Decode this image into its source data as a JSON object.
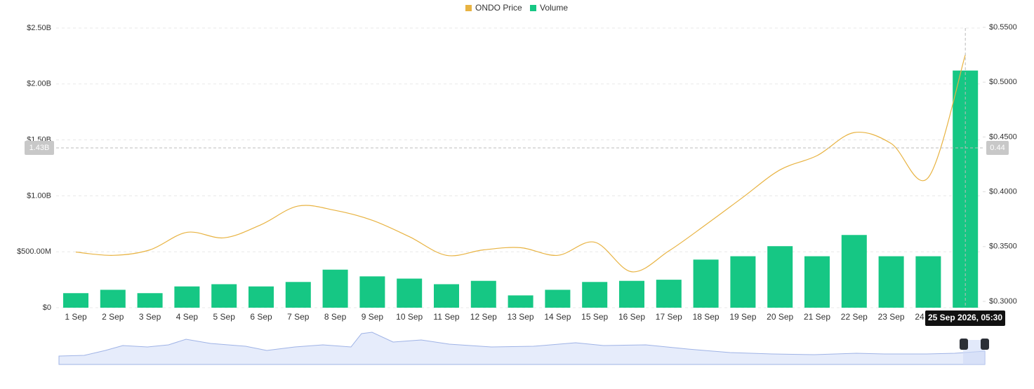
{
  "chart_data": {
    "type": "bar-line",
    "legend": [
      "ONDO Price",
      "Volume"
    ],
    "categories": [
      "1 Sep",
      "2 Sep",
      "3 Sep",
      "4 Sep",
      "5 Sep",
      "6 Sep",
      "7 Sep",
      "8 Sep",
      "9 Sep",
      "10 Sep",
      "11 Sep",
      "12 Sep",
      "13 Sep",
      "14 Sep",
      "15 Sep",
      "16 Sep",
      "17 Sep",
      "18 Sep",
      "19 Sep",
      "20 Sep",
      "21 Sep",
      "22 Sep",
      "23 Sep",
      "24 Sep",
      "25 Sep"
    ],
    "series": [
      {
        "name": "Volume",
        "type": "bar",
        "color": "#16c784",
        "values": [
          130000000,
          160000000,
          130000000,
          190000000,
          210000000,
          190000000,
          230000000,
          340000000,
          280000000,
          260000000,
          210000000,
          240000000,
          110000000,
          160000000,
          230000000,
          240000000,
          250000000,
          430000000,
          460000000,
          550000000,
          460000000,
          650000000,
          460000000,
          460000000,
          2120000000
        ]
      },
      {
        "name": "ONDO Price",
        "type": "line",
        "axis": "y2",
        "color": "#e8b342",
        "values": [
          0.345,
          0.342,
          0.347,
          0.363,
          0.358,
          0.37,
          0.387,
          0.383,
          0.374,
          0.359,
          0.342,
          0.347,
          0.349,
          0.342,
          0.354,
          0.327,
          0.346,
          0.37,
          0.395,
          0.42,
          0.433,
          0.454,
          0.444,
          0.413,
          0.525
        ]
      }
    ],
    "ylim": [
      0,
      2500000000
    ],
    "yticks": [
      {
        "value": 0,
        "label": "$0"
      },
      {
        "value": 500000000,
        "label": "$500.00M"
      },
      {
        "value": 1000000000,
        "label": "$1.00B"
      },
      {
        "value": 1500000000,
        "label": "$1.50B"
      },
      {
        "value": 2000000000,
        "label": "$2.00B"
      },
      {
        "value": 2500000000,
        "label": "$2.50B"
      }
    ],
    "y2lim": [
      0.3,
      0.55
    ],
    "y2ticks": [
      {
        "value": 0.3,
        "label": "$0.3000"
      },
      {
        "value": 0.35,
        "label": "$0.3500"
      },
      {
        "value": 0.4,
        "label": "$0.4000"
      },
      {
        "value": 0.45,
        "label": "$0.4500"
      },
      {
        "value": 0.5,
        "label": "$0.5000"
      },
      {
        "value": 0.55,
        "label": "$0.5500"
      }
    ],
    "grid": true,
    "crosshair": {
      "y_label": "1.43B",
      "y2_label": "0.44",
      "x_label": "25 Sep 2026, 05:30"
    }
  }
}
